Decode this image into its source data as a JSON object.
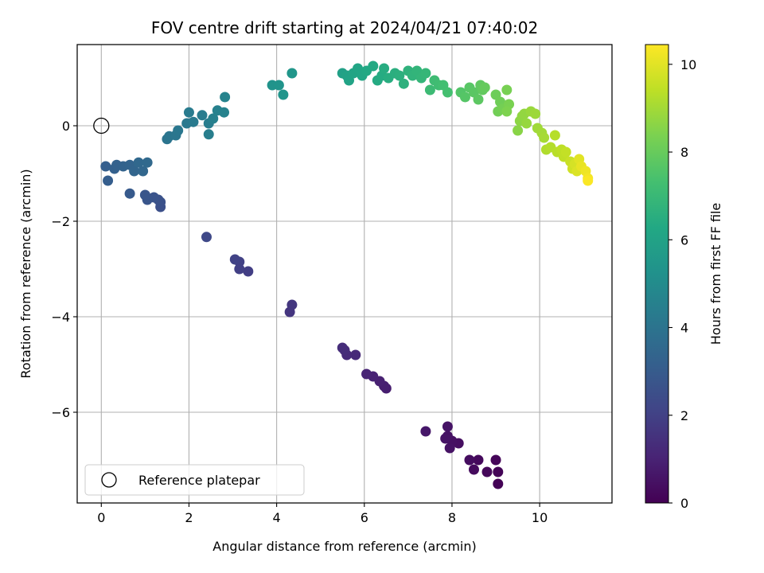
{
  "chart_data": {
    "type": "scatter",
    "title": "FOV centre drift starting at 2024/04/21 07:40:02",
    "xlabel": "Angular distance from reference (arcmin)",
    "ylabel": "Rotation from reference (arcmin)",
    "xlim": [
      -0.55,
      11.65
    ],
    "ylim": [
      -7.9,
      1.7
    ],
    "x_ticks": [
      0,
      2,
      4,
      6,
      8,
      10
    ],
    "y_ticks": [
      -6,
      -4,
      -2,
      0
    ],
    "x_tick_labels": [
      "0",
      "2",
      "4",
      "6",
      "8",
      "10"
    ],
    "y_tick_labels": [
      "−6",
      "−4",
      "−2",
      "0"
    ],
    "grid": true,
    "legend": {
      "placement": "lower-left",
      "entries": [
        "Reference platepar"
      ]
    },
    "reference_point": {
      "x": 0,
      "y": 0
    },
    "colormap": "viridis",
    "colorbar": {
      "label": "Hours from first FF file",
      "range": [
        0,
        10.45
      ],
      "ticks": [
        0,
        2,
        4,
        6,
        8,
        10
      ],
      "tick_labels": [
        "0",
        "2",
        "4",
        "6",
        "8",
        "10"
      ]
    },
    "series": [
      {
        "points": [
          [
            9.05,
            -7.5,
            0.05
          ],
          [
            9.05,
            -7.25,
            0.1
          ],
          [
            9.0,
            -7.0,
            0.15
          ],
          [
            8.8,
            -7.25,
            0.2
          ],
          [
            8.6,
            -7.0,
            0.25
          ],
          [
            8.5,
            -7.2,
            0.3
          ],
          [
            8.4,
            -7.0,
            0.35
          ],
          [
            8.15,
            -6.65,
            0.4
          ],
          [
            8.0,
            -6.6,
            0.45
          ],
          [
            7.95,
            -6.75,
            0.5
          ],
          [
            7.9,
            -6.5,
            0.52
          ],
          [
            7.85,
            -6.55,
            0.55
          ],
          [
            7.9,
            -6.3,
            0.58
          ],
          [
            7.4,
            -6.4,
            0.65
          ],
          [
            6.5,
            -5.5,
            0.85
          ],
          [
            6.45,
            -5.45,
            0.9
          ],
          [
            6.35,
            -5.35,
            0.95
          ],
          [
            6.2,
            -5.25,
            1.0
          ],
          [
            6.05,
            -5.2,
            1.05
          ],
          [
            5.8,
            -4.8,
            1.2
          ],
          [
            5.6,
            -4.8,
            1.25
          ],
          [
            5.55,
            -4.7,
            1.3
          ],
          [
            5.5,
            -4.65,
            1.35
          ],
          [
            4.3,
            -3.9,
            1.6
          ],
          [
            4.35,
            -3.75,
            1.65
          ],
          [
            3.35,
            -3.05,
            1.9
          ],
          [
            3.15,
            -3.0,
            1.95
          ],
          [
            3.15,
            -2.85,
            2.0
          ],
          [
            3.05,
            -2.8,
            2.05
          ],
          [
            2.4,
            -2.33,
            2.3
          ],
          [
            1.35,
            -1.7,
            2.55
          ],
          [
            1.35,
            -1.6,
            2.6
          ],
          [
            1.3,
            -1.55,
            2.65
          ],
          [
            1.2,
            -1.5,
            2.7
          ],
          [
            1.05,
            -1.55,
            2.75
          ],
          [
            1.0,
            -1.45,
            2.8
          ],
          [
            0.65,
            -1.42,
            2.95
          ],
          [
            0.15,
            -1.15,
            3.1
          ],
          [
            0.1,
            -0.85,
            3.15
          ],
          [
            0.3,
            -0.9,
            3.2
          ],
          [
            0.35,
            -0.82,
            3.25
          ],
          [
            0.5,
            -0.85,
            3.3
          ],
          [
            0.65,
            -0.82,
            3.35
          ],
          [
            0.75,
            -0.95,
            3.4
          ],
          [
            0.95,
            -0.95,
            3.45
          ],
          [
            0.85,
            -0.77,
            3.5
          ],
          [
            1.05,
            -0.77,
            3.55
          ],
          [
            1.5,
            -0.28,
            4.0
          ],
          [
            1.55,
            -0.22,
            4.05
          ],
          [
            1.7,
            -0.2,
            4.1
          ],
          [
            1.75,
            -0.1,
            4.15
          ],
          [
            1.95,
            0.05,
            4.2
          ],
          [
            2.1,
            0.08,
            4.25
          ],
          [
            2.0,
            0.28,
            4.3
          ],
          [
            2.3,
            0.22,
            4.35
          ],
          [
            2.45,
            0.05,
            4.4
          ],
          [
            2.45,
            -0.18,
            4.45
          ],
          [
            2.55,
            0.15,
            4.5
          ],
          [
            2.65,
            0.32,
            4.55
          ],
          [
            2.8,
            0.28,
            4.6
          ],
          [
            2.82,
            0.6,
            4.65
          ],
          [
            3.9,
            0.85,
            5.3
          ],
          [
            4.05,
            0.85,
            5.35
          ],
          [
            4.15,
            0.65,
            5.4
          ],
          [
            4.35,
            1.1,
            5.45
          ],
          [
            5.5,
            1.1,
            5.9
          ],
          [
            5.6,
            1.05,
            6.0
          ],
          [
            5.65,
            0.95,
            6.05
          ],
          [
            5.75,
            1.1,
            6.1
          ],
          [
            5.85,
            1.2,
            6.15
          ],
          [
            5.95,
            1.05,
            6.2
          ],
          [
            6.05,
            1.15,
            6.25
          ],
          [
            6.2,
            1.25,
            6.3
          ],
          [
            6.3,
            0.95,
            6.35
          ],
          [
            6.4,
            1.05,
            6.4
          ],
          [
            6.45,
            1.2,
            6.45
          ],
          [
            6.55,
            1.0,
            6.5
          ],
          [
            6.7,
            1.1,
            6.55
          ],
          [
            6.8,
            1.05,
            6.6
          ],
          [
            6.9,
            0.88,
            6.65
          ],
          [
            7.0,
            1.15,
            6.7
          ],
          [
            7.1,
            1.05,
            6.75
          ],
          [
            7.2,
            1.15,
            6.8
          ],
          [
            7.3,
            1.0,
            6.85
          ],
          [
            7.4,
            1.1,
            6.9
          ],
          [
            7.5,
            0.75,
            7.1
          ],
          [
            7.6,
            0.95,
            7.15
          ],
          [
            7.7,
            0.85,
            7.2
          ],
          [
            7.8,
            0.85,
            7.25
          ],
          [
            7.9,
            0.7,
            7.3
          ],
          [
            8.2,
            0.7,
            7.6
          ],
          [
            8.3,
            0.6,
            7.65
          ],
          [
            8.4,
            0.8,
            7.7
          ],
          [
            8.5,
            0.7,
            7.75
          ],
          [
            8.6,
            0.55,
            7.8
          ],
          [
            8.65,
            0.85,
            7.85
          ],
          [
            8.7,
            0.75,
            7.9
          ],
          [
            8.75,
            0.8,
            7.95
          ],
          [
            9.0,
            0.65,
            8.1
          ],
          [
            9.1,
            0.5,
            8.15
          ],
          [
            9.05,
            0.3,
            8.2
          ],
          [
            9.15,
            0.35,
            8.25
          ],
          [
            9.25,
            0.75,
            8.3
          ],
          [
            9.3,
            0.45,
            8.35
          ],
          [
            9.25,
            0.3,
            8.4
          ],
          [
            9.5,
            -0.1,
            8.6
          ],
          [
            9.55,
            0.1,
            8.65
          ],
          [
            9.6,
            0.2,
            8.7
          ],
          [
            9.65,
            0.25,
            8.75
          ],
          [
            9.7,
            0.05,
            8.8
          ],
          [
            9.8,
            0.3,
            8.85
          ],
          [
            9.9,
            0.25,
            8.9
          ],
          [
            9.95,
            -0.05,
            8.95
          ],
          [
            10.05,
            -0.15,
            9.0
          ],
          [
            10.1,
            -0.25,
            9.05
          ],
          [
            10.15,
            -0.5,
            9.2
          ],
          [
            10.25,
            -0.45,
            9.25
          ],
          [
            10.35,
            -0.2,
            9.3
          ],
          [
            10.4,
            -0.55,
            9.35
          ],
          [
            10.5,
            -0.5,
            9.4
          ],
          [
            10.55,
            -0.65,
            9.45
          ],
          [
            10.6,
            -0.55,
            9.5
          ],
          [
            10.7,
            -0.75,
            9.6
          ],
          [
            10.75,
            -0.9,
            9.7
          ],
          [
            10.8,
            -0.8,
            9.8
          ],
          [
            10.85,
            -0.95,
            9.9
          ],
          [
            10.9,
            -0.7,
            10.0
          ],
          [
            10.95,
            -0.85,
            10.1
          ],
          [
            11.05,
            -0.95,
            10.2
          ],
          [
            11.1,
            -1.1,
            10.3
          ],
          [
            11.1,
            -1.15,
            10.4
          ]
        ]
      }
    ]
  }
}
